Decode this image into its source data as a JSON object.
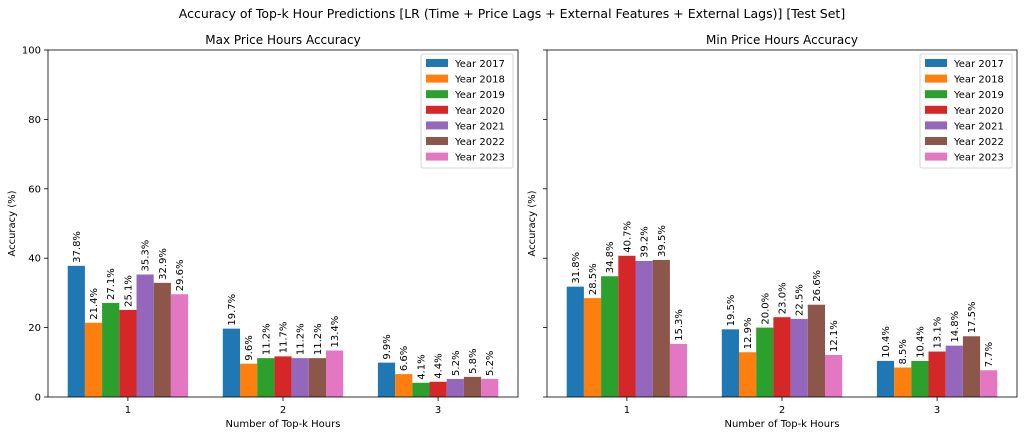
{
  "suptitle": "Accuracy of Top-k Hour Predictions [LR (Time + Price Lags + External Features + External Lags)] [Test Set]",
  "chart_data": [
    {
      "type": "bar",
      "title": "Max Price Hours Accuracy",
      "xlabel": "Number of Top-k Hours",
      "ylabel": "Accuracy (%)",
      "categories": [
        "1",
        "2",
        "3"
      ],
      "ylim": [
        0,
        100
      ],
      "yticks": [
        0,
        20,
        40,
        60,
        80,
        100
      ],
      "legend_position": "top-right",
      "series": [
        {
          "name": "Year 2017",
          "color": "#1f77b4",
          "values": [
            37.8,
            19.7,
            9.9
          ]
        },
        {
          "name": "Year 2018",
          "color": "#ff7f0e",
          "values": [
            21.4,
            9.6,
            6.6
          ]
        },
        {
          "name": "Year 2019",
          "color": "#2ca02c",
          "values": [
            27.1,
            11.2,
            4.1
          ]
        },
        {
          "name": "Year 2020",
          "color": "#d62728",
          "values": [
            25.1,
            11.7,
            4.4
          ]
        },
        {
          "name": "Year 2021",
          "color": "#9467bd",
          "values": [
            35.3,
            11.2,
            5.2
          ]
        },
        {
          "name": "Year 2022",
          "color": "#8c564b",
          "values": [
            32.9,
            11.2,
            5.8
          ]
        },
        {
          "name": "Year 2023",
          "color": "#e377c2",
          "values": [
            29.6,
            13.4,
            5.2
          ]
        }
      ]
    },
    {
      "type": "bar",
      "title": "Min Price Hours Accuracy",
      "xlabel": "Number of Top-k Hours",
      "ylabel": "Accuracy (%)",
      "categories": [
        "1",
        "2",
        "3"
      ],
      "ylim": [
        0,
        100
      ],
      "yticks": [
        0,
        20,
        40,
        60,
        80,
        100
      ],
      "legend_position": "top-right",
      "series": [
        {
          "name": "Year 2017",
          "color": "#1f77b4",
          "values": [
            31.8,
            19.5,
            10.4
          ]
        },
        {
          "name": "Year 2018",
          "color": "#ff7f0e",
          "values": [
            28.5,
            12.9,
            8.5
          ]
        },
        {
          "name": "Year 2019",
          "color": "#2ca02c",
          "values": [
            34.8,
            20.0,
            10.4
          ]
        },
        {
          "name": "Year 2020",
          "color": "#d62728",
          "values": [
            40.7,
            23.0,
            13.1
          ]
        },
        {
          "name": "Year 2021",
          "color": "#9467bd",
          "values": [
            39.2,
            22.5,
            14.8
          ]
        },
        {
          "name": "Year 2022",
          "color": "#8c564b",
          "values": [
            39.5,
            26.6,
            17.5
          ]
        },
        {
          "name": "Year 2023",
          "color": "#e377c2",
          "values": [
            15.3,
            12.1,
            7.7
          ]
        }
      ]
    }
  ]
}
